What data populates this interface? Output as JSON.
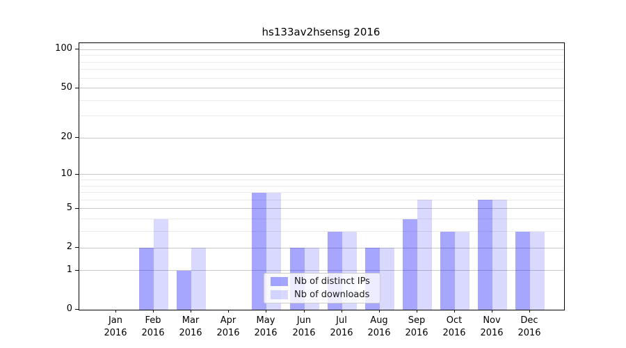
{
  "chart_data": {
    "type": "bar",
    "title": "hs133av2hsensg 2016",
    "categories": [
      "Jan",
      "Feb",
      "Mar",
      "Apr",
      "May",
      "Jun",
      "Jul",
      "Aug",
      "Sep",
      "Oct",
      "Nov",
      "Dec"
    ],
    "year": "2016",
    "series": [
      {
        "name": "Nb of distinct IPs",
        "color": "rgba(0,0,255,0.35)",
        "values": [
          0,
          2,
          1,
          0,
          7,
          2,
          3,
          2,
          4,
          3,
          6,
          3
        ]
      },
      {
        "name": "Nb of downloads",
        "color": "rgba(0,0,255,0.15)",
        "values": [
          0,
          4,
          2,
          0,
          7,
          2,
          3,
          2,
          6,
          3,
          6,
          3
        ]
      }
    ],
    "yticks": [
      0,
      1,
      2,
      5,
      10,
      20,
      50,
      100
    ],
    "ytick_labels": [
      "0",
      "1",
      "2",
      "5",
      "10",
      "20",
      "50",
      "100"
    ],
    "minor_yticks": [
      3,
      4,
      6,
      7,
      8,
      9,
      30,
      40,
      60,
      70,
      80,
      90
    ],
    "scale": "log10(1+y)",
    "ylim": [
      0,
      112
    ],
    "xlabel": "",
    "ylabel": "",
    "grid": true,
    "legend_position": "lower-center",
    "colors": {
      "major_grid": "#c9c9c9",
      "minor_grid": "#eaeaea",
      "axis": "#000000"
    }
  }
}
